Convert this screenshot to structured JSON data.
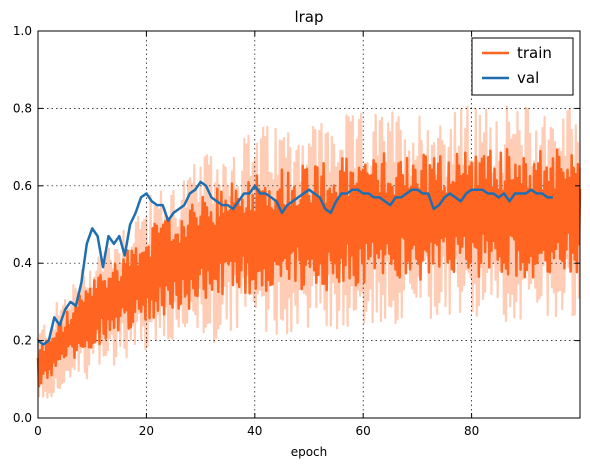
{
  "chart_data": {
    "type": "line",
    "title": "lrap",
    "xlabel": "epoch",
    "ylabel": "",
    "xlim": [
      0,
      100
    ],
    "ylim": [
      0.0,
      1.0
    ],
    "x_ticks": [
      "0",
      "20",
      "40",
      "60",
      "80"
    ],
    "y_ticks": [
      "0.0",
      "0.2",
      "0.4",
      "0.6",
      "0.8",
      "1.0"
    ],
    "grid": true,
    "legend_position": "top-right",
    "series": [
      {
        "name": "train",
        "color": "#ff6420",
        "band_color": "#ffcdb5",
        "style": "noisy-band",
        "x": [
          0,
          5,
          10,
          15,
          20,
          25,
          30,
          35,
          40,
          45,
          50,
          55,
          60,
          65,
          70,
          75,
          80,
          85,
          90,
          95,
          100
        ],
        "values": [
          0.13,
          0.2,
          0.27,
          0.32,
          0.37,
          0.4,
          0.43,
          0.46,
          0.48,
          0.49,
          0.5,
          0.5,
          0.51,
          0.52,
          0.52,
          0.52,
          0.53,
          0.53,
          0.53,
          0.53,
          0.53
        ],
        "spread": [
          0.05,
          0.07,
          0.09,
          0.1,
          0.12,
          0.13,
          0.14,
          0.15,
          0.16,
          0.16,
          0.17,
          0.17,
          0.17,
          0.17,
          0.17,
          0.17,
          0.17,
          0.17,
          0.17,
          0.17,
          0.17
        ],
        "band_spread": [
          0.1,
          0.13,
          0.16,
          0.18,
          0.2,
          0.22,
          0.24,
          0.26,
          0.27,
          0.28,
          0.28,
          0.28,
          0.28,
          0.28,
          0.28,
          0.28,
          0.28,
          0.28,
          0.28,
          0.28,
          0.28
        ]
      },
      {
        "name": "val",
        "color": "#1f6fb0",
        "style": "line",
        "x": [
          0,
          1,
          2,
          3,
          4,
          5,
          6,
          7,
          8,
          9,
          10,
          11,
          12,
          13,
          14,
          15,
          16,
          17,
          18,
          19,
          20,
          21,
          22,
          23,
          24,
          25,
          26,
          27,
          28,
          29,
          30,
          31,
          32,
          33,
          34,
          35,
          36,
          37,
          38,
          39,
          40,
          41,
          42,
          43,
          44,
          45,
          46,
          47,
          48,
          49,
          50,
          51,
          52,
          53,
          54,
          55,
          56,
          57,
          58,
          59,
          60,
          61,
          62,
          63,
          64,
          65,
          66,
          67,
          68,
          69,
          70,
          71,
          72,
          73,
          74,
          75,
          76,
          77,
          78,
          79,
          80,
          81,
          82,
          83,
          84,
          85,
          86,
          87,
          88,
          89,
          90,
          91,
          92,
          93,
          94,
          95
        ],
        "values": [
          0.2,
          0.19,
          0.2,
          0.26,
          0.24,
          0.28,
          0.3,
          0.29,
          0.35,
          0.45,
          0.49,
          0.47,
          0.39,
          0.47,
          0.45,
          0.47,
          0.42,
          0.5,
          0.53,
          0.57,
          0.58,
          0.56,
          0.55,
          0.55,
          0.51,
          0.53,
          0.54,
          0.55,
          0.58,
          0.59,
          0.61,
          0.6,
          0.57,
          0.56,
          0.55,
          0.55,
          0.54,
          0.56,
          0.58,
          0.58,
          0.6,
          0.58,
          0.58,
          0.57,
          0.56,
          0.53,
          0.55,
          0.56,
          0.57,
          0.58,
          0.59,
          0.58,
          0.57,
          0.54,
          0.53,
          0.56,
          0.58,
          0.58,
          0.59,
          0.59,
          0.58,
          0.58,
          0.57,
          0.57,
          0.56,
          0.55,
          0.57,
          0.57,
          0.58,
          0.59,
          0.59,
          0.58,
          0.58,
          0.54,
          0.55,
          0.57,
          0.58,
          0.57,
          0.56,
          0.58,
          0.59,
          0.59,
          0.59,
          0.58,
          0.58,
          0.57,
          0.58,
          0.56,
          0.58,
          0.58,
          0.58,
          0.59,
          0.58,
          0.58,
          0.57,
          0.57
        ]
      }
    ]
  }
}
